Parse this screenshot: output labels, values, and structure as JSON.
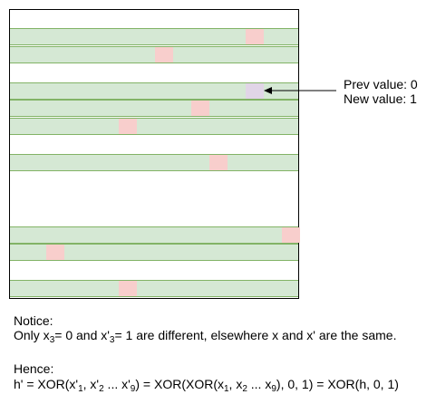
{
  "diagram": {
    "colors": {
      "row_fill": "#d5e8d4",
      "row_border": "#82b366",
      "highlight_cell": "#f8cecc",
      "changed_cell": "#e1d5e7",
      "frame": "#000000"
    },
    "row_count": 16,
    "row_cell_count": 16,
    "rows": [
      {
        "index": 1,
        "cell": 13,
        "kind": "highlight"
      },
      {
        "index": 2,
        "cell": 8,
        "kind": "highlight"
      },
      {
        "index": 4,
        "cell": 13,
        "kind": "changed"
      },
      {
        "index": 5,
        "cell": 10,
        "kind": "highlight"
      },
      {
        "index": 6,
        "cell": 6,
        "kind": "highlight"
      },
      {
        "index": 8,
        "cell": 11,
        "kind": "highlight"
      },
      {
        "index": 12,
        "cell": 15,
        "kind": "highlight"
      },
      {
        "index": 13,
        "cell": 2,
        "kind": "highlight"
      },
      {
        "index": 15,
        "cell": 6,
        "kind": "highlight"
      }
    ],
    "callout": {
      "prev_label": "Prev value: 0",
      "new_label": "New value: 1"
    }
  },
  "notes": {
    "notice_title": "Notice:",
    "notice_line": {
      "p1": "Only x",
      "s1": "3",
      "p2": "= 0 and x'",
      "s2": "3",
      "p3": "= 1 are different, elsewhere x and x' are the same."
    },
    "hence_title": "Hence:",
    "hence_line": {
      "p1": "h' = XOR(x'",
      "s1": "1",
      "p2": ", x'",
      "s2": "2",
      "p3": " ... x'",
      "s3": "9",
      "p4": ") = XOR(XOR(x",
      "s4": "1",
      "p5": ", x",
      "s5": "2",
      "p6": " ... x",
      "s6": "9",
      "p7": "), 0, 1) = XOR(h, 0, 1)"
    }
  }
}
